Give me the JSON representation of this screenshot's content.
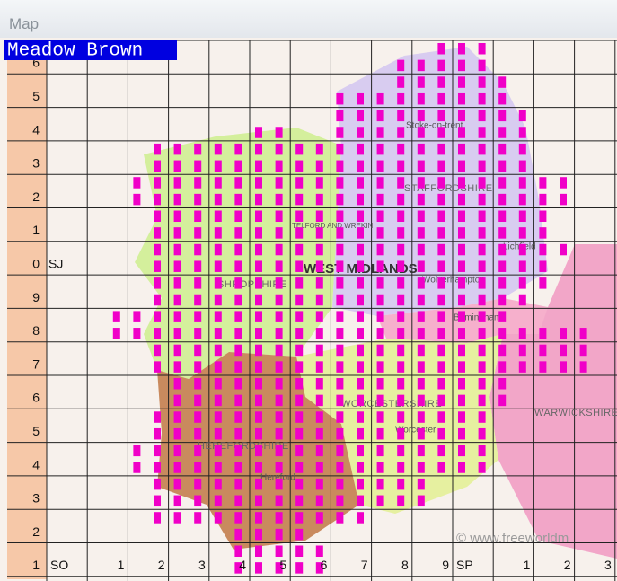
{
  "window": {
    "title": "Map"
  },
  "species": "Meadow Brown",
  "grid": {
    "row_labels": [
      "6",
      "5",
      "4",
      "3",
      "2",
      "1",
      "0",
      "9",
      "8",
      "7",
      "6",
      "5",
      "4",
      "3",
      "2",
      "1"
    ],
    "north_square": "SJ",
    "column_labels": [
      "SO",
      "1",
      "2",
      "3",
      "4",
      "5",
      "6",
      "7",
      "8",
      "9",
      "SP",
      "1",
      "2",
      "3"
    ]
  },
  "places": [
    {
      "label": "WEST MIDLANDS"
    },
    {
      "label": "SHROPSHIRE"
    },
    {
      "label": "STAFFORDSHIRE"
    },
    {
      "label": "WORCESTERSHIRE"
    },
    {
      "label": "HEREFORDSHIRE"
    },
    {
      "label": "WARWICKSHIRE"
    },
    {
      "label": "Stoke-on-trent"
    },
    {
      "label": "Wolverhampton"
    },
    {
      "label": "Birmingham"
    },
    {
      "label": "Worcester"
    },
    {
      "label": "Hereford"
    },
    {
      "label": "Lichfield"
    },
    {
      "label": "TELFORD AND WREKIN"
    }
  ],
  "credit": "© www.freeworldm",
  "records": [
    [
      0,
      19,
      21
    ],
    [
      1,
      17,
      21
    ],
    [
      2,
      17,
      22
    ],
    [
      3,
      14,
      22
    ],
    [
      4,
      14,
      23
    ],
    [
      5,
      10,
      11
    ],
    [
      5,
      14,
      23
    ],
    [
      6,
      5,
      23
    ],
    [
      7,
      5,
      23
    ],
    [
      8,
      4,
      25
    ],
    [
      9,
      4,
      25
    ],
    [
      10,
      5,
      24
    ],
    [
      11,
      5,
      24
    ],
    [
      12,
      5,
      25
    ],
    [
      13,
      5,
      24
    ],
    [
      14,
      5,
      24
    ],
    [
      15,
      5,
      23
    ],
    [
      16,
      3,
      22
    ],
    [
      17,
      3,
      26
    ],
    [
      18,
      5,
      26
    ],
    [
      19,
      5,
      26
    ],
    [
      20,
      6,
      22
    ],
    [
      21,
      6,
      22
    ],
    [
      22,
      5,
      21
    ],
    [
      23,
      5,
      21
    ],
    [
      24,
      4,
      21
    ],
    [
      25,
      4,
      21
    ],
    [
      26,
      5,
      18
    ],
    [
      27,
      5,
      18
    ],
    [
      28,
      5,
      15
    ],
    [
      29,
      9,
      12
    ],
    [
      30,
      9,
      13
    ],
    [
      31,
      9,
      13
    ]
  ]
}
